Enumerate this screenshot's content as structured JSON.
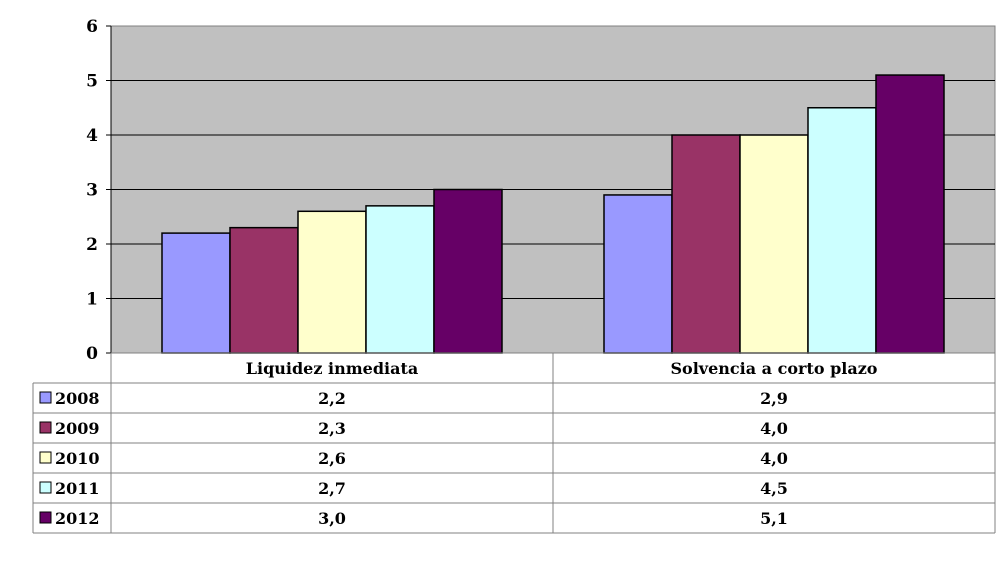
{
  "chart_data": {
    "type": "bar",
    "categories": [
      "Liquidez inmediata",
      "Solvencia a corto plazo"
    ],
    "series": [
      {
        "name": "2008",
        "values": [
          2.2,
          2.9
        ],
        "labels": [
          "2,2",
          "2,9"
        ],
        "color": "#9999FF"
      },
      {
        "name": "2009",
        "values": [
          2.3,
          4.0
        ],
        "labels": [
          "2,3",
          "4,0"
        ],
        "color": "#993366"
      },
      {
        "name": "2010",
        "values": [
          2.6,
          4.0
        ],
        "labels": [
          "2,6",
          "4,0"
        ],
        "color": "#FFFFCC"
      },
      {
        "name": "2011",
        "values": [
          2.7,
          4.5
        ],
        "labels": [
          "2,7",
          "4,5"
        ],
        "color": "#CCFFFF"
      },
      {
        "name": "2012",
        "values": [
          3.0,
          5.1
        ],
        "labels": [
          "3,0",
          "5,1"
        ],
        "color": "#660066"
      }
    ],
    "ylim": [
      0,
      6
    ],
    "yticks": [
      "0",
      "1",
      "2",
      "3",
      "4",
      "5",
      "6"
    ],
    "title": "",
    "xlabel": "",
    "ylabel": "",
    "grid": true,
    "legend": "data-table",
    "plot_background": "#C0C0C0"
  }
}
